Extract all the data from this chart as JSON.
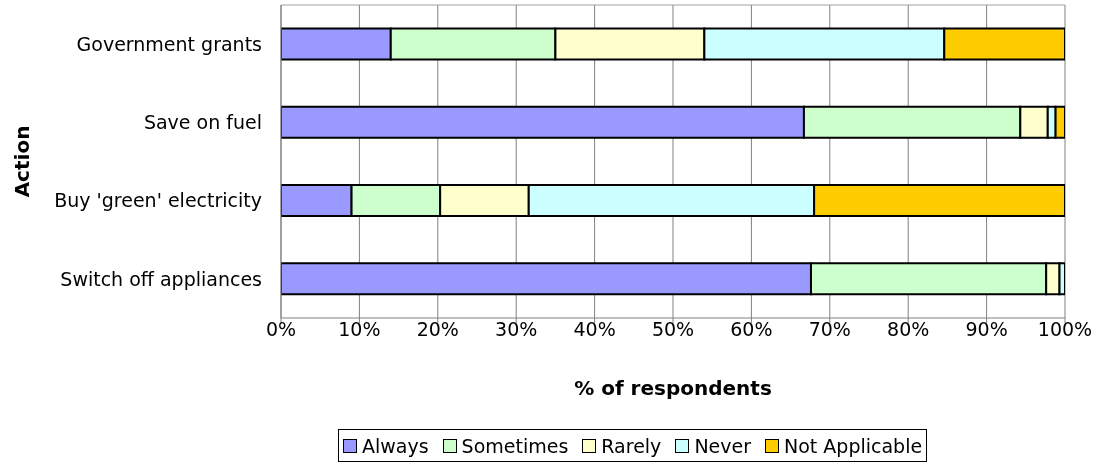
{
  "chart_data": {
    "type": "bar",
    "orientation": "horizontal",
    "stacked": true,
    "xlabel": "% of respondents",
    "ylabel": "Action",
    "categories": [
      "Government grants",
      "Save on fuel",
      "Buy 'green' electricity",
      "Switch off appliances"
    ],
    "series": [
      {
        "name": "Always",
        "color": "#9999ff",
        "values": [
          14,
          66.7,
          9,
          67.6
        ]
      },
      {
        "name": "Sometimes",
        "color": "#ccffcc",
        "values": [
          21,
          27.6,
          11.3,
          30
        ]
      },
      {
        "name": "Rarely",
        "color": "#ffffcc",
        "values": [
          19,
          3.5,
          11.3,
          1.7
        ]
      },
      {
        "name": "Never",
        "color": "#ccffff",
        "values": [
          30.6,
          1,
          36.4,
          0.7
        ]
      },
      {
        "name": "Not Applicable",
        "color": "#ffcc00",
        "values": [
          15.4,
          1.2,
          32,
          0
        ]
      }
    ],
    "xlim": [
      0,
      100
    ],
    "xticks": [
      {
        "value": 0,
        "label": "0%"
      },
      {
        "value": 10,
        "label": "10%"
      },
      {
        "value": 20,
        "label": "20%"
      },
      {
        "value": 30,
        "label": "30%"
      },
      {
        "value": 40,
        "label": "40%"
      },
      {
        "value": 50,
        "label": "50%"
      },
      {
        "value": 60,
        "label": "60%"
      },
      {
        "value": 70,
        "label": "70%"
      },
      {
        "value": 80,
        "label": "80%"
      },
      {
        "value": 90,
        "label": "90%"
      },
      {
        "value": 100,
        "label": "100%"
      }
    ],
    "grid": "x",
    "legend": "bottom"
  }
}
